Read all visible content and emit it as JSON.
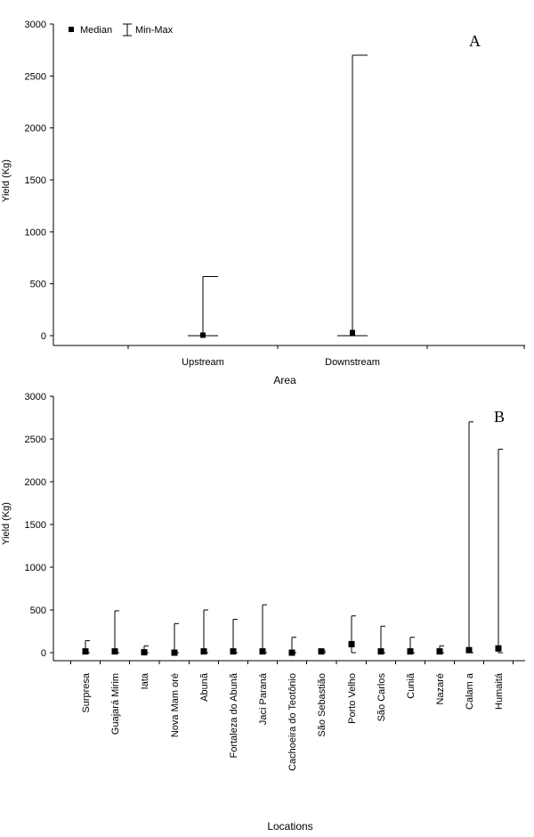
{
  "chart_data": [
    {
      "panel_label": "A",
      "type": "median-range",
      "xlabel": "Area",
      "ylabel": "Yield (Kg)",
      "ylim": [
        0,
        3000
      ],
      "yticks": [
        0,
        500,
        1000,
        1500,
        2000,
        2500,
        3000
      ],
      "legend": {
        "position": "top-left",
        "median_label": "Median",
        "range_label": "Min-Max"
      },
      "categories": [
        "Upstream",
        "Downstream"
      ],
      "median": [
        5,
        30
      ],
      "min": [
        0,
        0
      ],
      "max": [
        570,
        2700
      ]
    },
    {
      "panel_label": "B",
      "type": "median-range",
      "xlabel": "Locations",
      "ylabel": "Yield (Kg)",
      "ylim": [
        0,
        3000
      ],
      "yticks": [
        0,
        500,
        1000,
        1500,
        2000,
        2500,
        3000
      ],
      "categories": [
        "Surpresa",
        "Guajará Mirim",
        "Iata",
        "Nova Mam oré",
        "Abunã",
        "Fortaleza do Abunã",
        "Jaci Paraná",
        "Cachoeira do Teotônio",
        "São Sebastião",
        "Porto Velho",
        "São Carlos",
        "Cuniã",
        "Nazaré",
        "Calam a",
        "Humaitá"
      ],
      "median": [
        15,
        15,
        5,
        0,
        15,
        15,
        15,
        0,
        15,
        100,
        15,
        15,
        15,
        30,
        50
      ],
      "min": [
        0,
        0,
        0,
        0,
        0,
        0,
        0,
        0,
        0,
        0,
        0,
        0,
        0,
        0,
        0
      ],
      "max": [
        140,
        490,
        80,
        340,
        500,
        390,
        560,
        180,
        20,
        430,
        310,
        180,
        80,
        2700,
        2380
      ]
    }
  ]
}
